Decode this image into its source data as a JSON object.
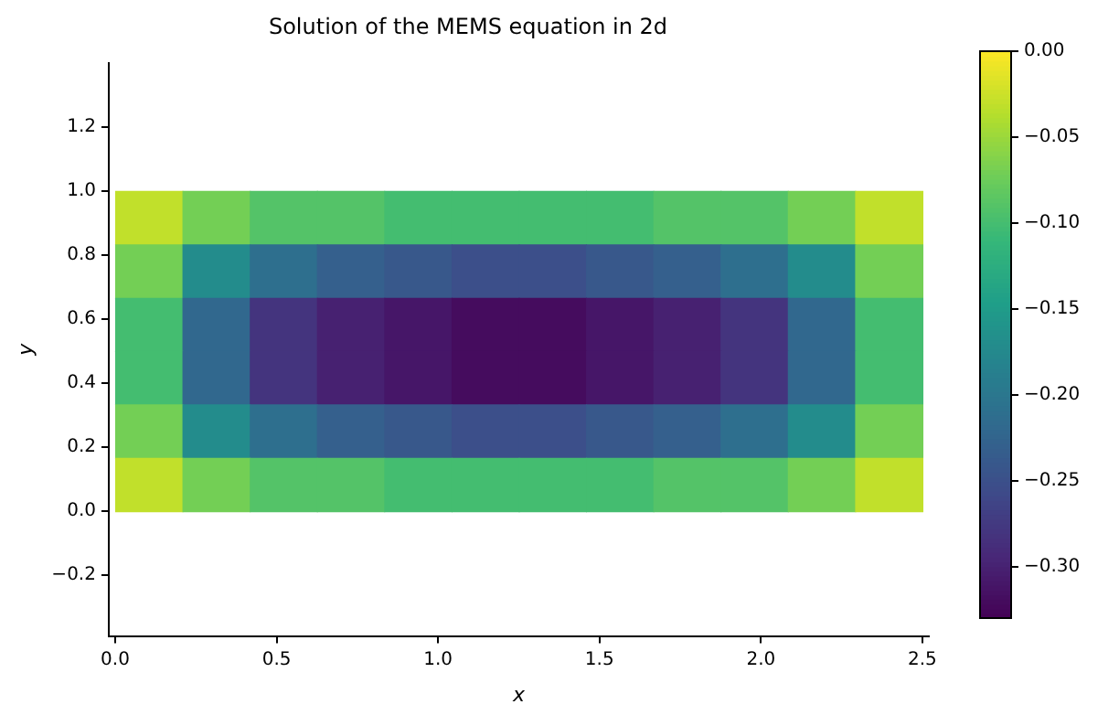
{
  "chart_data": {
    "type": "heatmap",
    "title": "Solution of the MEMS equation in 2d",
    "xlabel": "x",
    "ylabel": "y",
    "x": [
      0.104,
      0.3125,
      0.521,
      0.729,
      0.9375,
      1.146,
      1.354,
      1.5625,
      1.771,
      1.979,
      2.1875,
      2.396
    ],
    "y": [
      0.917,
      0.75,
      0.583,
      0.417,
      0.25,
      0.083
    ],
    "cells": [
      [
        -0.03,
        -0.07,
        -0.09,
        -0.09,
        -0.1,
        -0.1,
        -0.1,
        -0.1,
        -0.09,
        -0.09,
        -0.07,
        -0.03
      ],
      [
        -0.07,
        -0.17,
        -0.21,
        -0.23,
        -0.24,
        -0.25,
        -0.25,
        -0.24,
        -0.23,
        -0.21,
        -0.17,
        -0.07
      ],
      [
        -0.1,
        -0.22,
        -0.28,
        -0.3,
        -0.31,
        -0.32,
        -0.32,
        -0.31,
        -0.3,
        -0.28,
        -0.22,
        -0.1
      ],
      [
        -0.1,
        -0.22,
        -0.28,
        -0.3,
        -0.31,
        -0.32,
        -0.32,
        -0.31,
        -0.3,
        -0.28,
        -0.22,
        -0.1
      ],
      [
        -0.07,
        -0.17,
        -0.21,
        -0.23,
        -0.24,
        -0.25,
        -0.25,
        -0.24,
        -0.23,
        -0.21,
        -0.17,
        -0.07
      ],
      [
        -0.03,
        -0.07,
        -0.09,
        -0.09,
        -0.1,
        -0.1,
        -0.1,
        -0.1,
        -0.09,
        -0.09,
        -0.07,
        -0.03
      ]
    ],
    "xlim": [
      -0.02,
      2.52
    ],
    "ylim": [
      -0.39,
      1.4
    ],
    "xticks": [
      {
        "value": 0,
        "label": "0.0"
      },
      {
        "value": 0.5,
        "label": "0.5"
      },
      {
        "value": 1,
        "label": "1.0"
      },
      {
        "value": 1.5,
        "label": "1.5"
      },
      {
        "value": 2,
        "label": "2.0"
      },
      {
        "value": 2.5,
        "label": "2.5"
      }
    ],
    "yticks": [
      {
        "value": -0.2,
        "label": "−0.2"
      },
      {
        "value": 0,
        "label": "0.0"
      },
      {
        "value": 0.2,
        "label": "0.2"
      },
      {
        "value": 0.4,
        "label": "0.4"
      },
      {
        "value": 0.6,
        "label": "0.6"
      },
      {
        "value": 0.8,
        "label": "0.8"
      },
      {
        "value": 1,
        "label": "1.0"
      },
      {
        "value": 1.2,
        "label": "1.2"
      }
    ],
    "clim": [
      -0.33,
      0
    ],
    "cticks": [
      {
        "value": -0.3,
        "label": "−0.30"
      },
      {
        "value": -0.25,
        "label": "−0.25"
      },
      {
        "value": -0.2,
        "label": "−0.20"
      },
      {
        "value": -0.15,
        "label": "−0.15"
      },
      {
        "value": -0.1,
        "label": "−0.10"
      },
      {
        "value": -0.05,
        "label": "−0.05"
      },
      {
        "value": 0,
        "label": "0.00"
      }
    ],
    "grid": false
  }
}
